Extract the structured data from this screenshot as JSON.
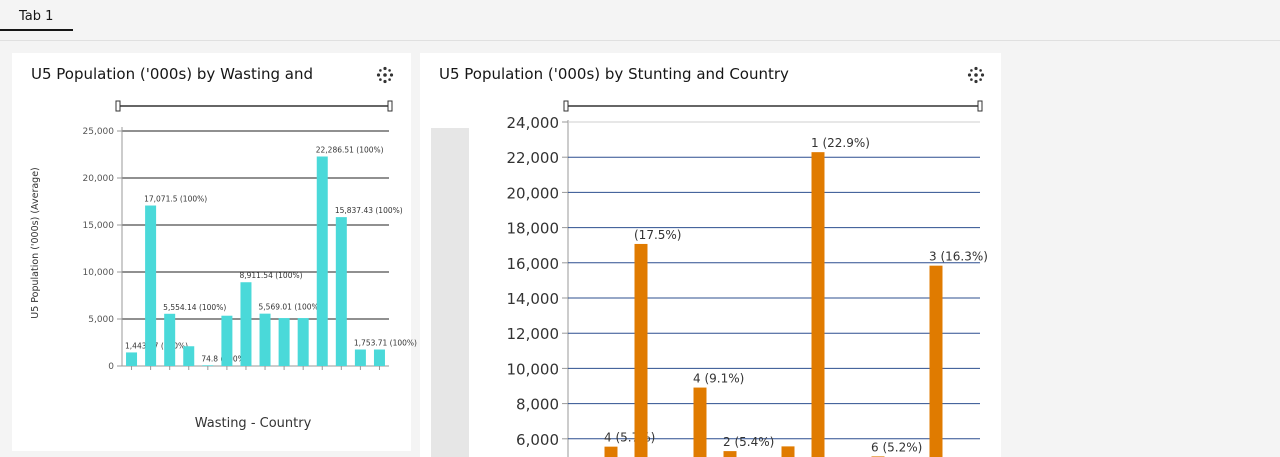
{
  "tabs": [
    {
      "label": "Tab 1",
      "active": true
    }
  ],
  "cards": [
    {
      "title": "U5 Population ('000s) by Wasting and",
      "menu_icon": "sparkle-menu-icon"
    },
    {
      "title": "U5 Population ('000s) by Stunting and Country",
      "menu_icon": "sparkle-menu-icon"
    }
  ],
  "chart_data": [
    {
      "type": "bar",
      "xlabel": "Wasting - Country",
      "ylabel": "U5 Population ('000s) (Average)",
      "ylim": [
        0,
        25000
      ],
      "yticks": [
        0,
        5000,
        10000,
        15000,
        20000,
        25000
      ],
      "ytick_labels": [
        "0",
        "5,000",
        "10,000",
        "15,000",
        "20,000",
        "25,000"
      ],
      "grid": true,
      "color": "#4ad9d9",
      "values": [
        1443.07,
        17071.5,
        5554.14,
        2100,
        74.8,
        5350,
        8911.54,
        5569.01,
        5100,
        5100,
        22286.51,
        15837.43,
        1753.71,
        1753.71
      ],
      "labels": [
        "1,443.07 (100%)",
        "17,071.5 (100%)",
        "5,554.14 (100%)",
        "",
        "74.8 (100%)",
        "",
        "8,911.54 (100%)",
        "5,569.01 (100%)",
        "",
        "",
        "22,286.51 (100%)",
        "15,837.43 (100%)",
        "1,753.71 (100%)",
        ""
      ]
    },
    {
      "type": "bar",
      "ylim": [
        5000,
        24000
      ],
      "yticks": [
        6000,
        8000,
        10000,
        12000,
        14000,
        16000,
        18000,
        20000,
        22000,
        24000
      ],
      "ytick_labels": [
        "6,000",
        "8,000",
        "10,000",
        "12,000",
        "14,000",
        "16,000",
        "18,000",
        "20,000",
        "22,000",
        "24,000"
      ],
      "grid": true,
      "color": "#e07b00",
      "values": [
        5554,
        17071,
        8911,
        5300,
        5569,
        22286,
        5000,
        15837
      ],
      "labels": [
        "4 (5.7%)",
        "(17.5%)",
        "4 (9.1%)",
        "2 (5.4%)",
        "",
        "1 (22.9%)",
        "6 (5.2%)",
        "3 (16.3%)"
      ]
    }
  ]
}
